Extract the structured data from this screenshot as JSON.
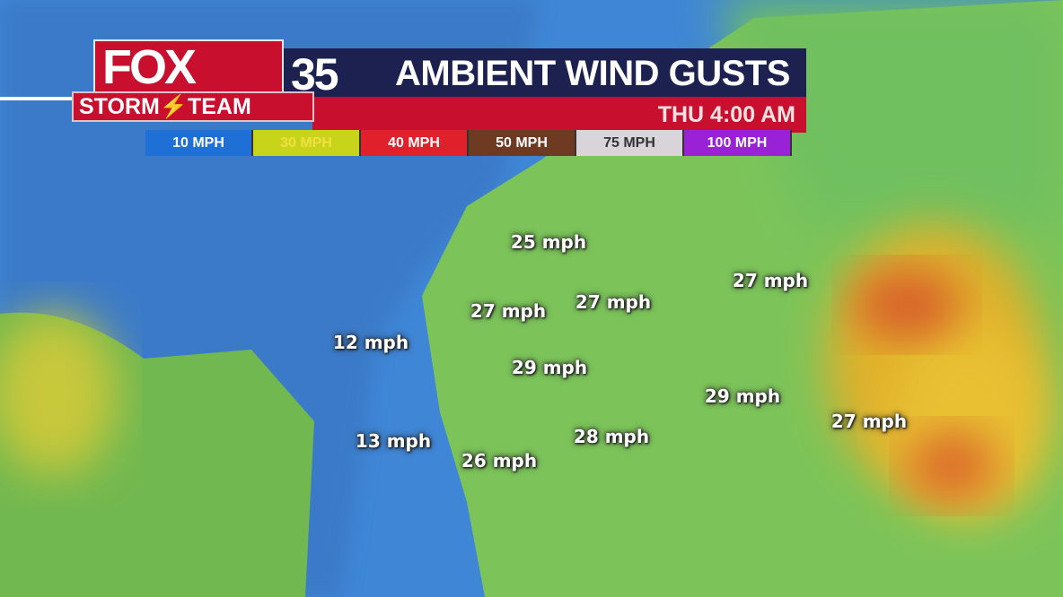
{
  "header": {
    "brand": "FOX",
    "channel": "35",
    "team": "STORM⚡TEAM",
    "title": "AMBIENT WIND GUSTS",
    "time": "THU 4:00 AM"
  },
  "legend": [
    {
      "label": "10 MPH",
      "color": "#1e6fd6",
      "text": "#ffffff"
    },
    {
      "label": "30 MPH",
      "color": "#c8d41a",
      "text": "#f0e040"
    },
    {
      "label": "40 MPH",
      "color": "#e0202a",
      "text": "#ffffff"
    },
    {
      "label": "50 MPH",
      "color": "#6e3b22",
      "text": "#ffffff"
    },
    {
      "label": "75 MPH",
      "color": "#d8d4da",
      "text": "#333333"
    },
    {
      "label": "100 MPH",
      "color": "#9a22d6",
      "text": "#ffffff"
    }
  ],
  "readings": [
    "25 mph",
    "27 mph",
    "27 mph",
    "27 mph",
    "12 mph",
    "29 mph",
    "29 mph",
    "27 mph",
    "13 mph",
    "28 mph",
    "26 mph"
  ]
}
